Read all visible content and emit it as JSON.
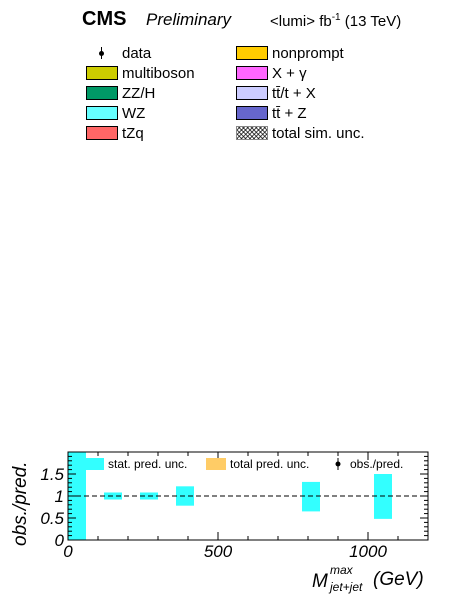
{
  "header": {
    "experiment": "CMS",
    "status": "Preliminary",
    "lumi_text": "<lumi> fb",
    "lumi_exp": "-1",
    "energy": "(13 TeV)"
  },
  "legend": {
    "items": [
      {
        "label": "data",
        "color": "#000000",
        "style": "marker"
      },
      {
        "label": "nonprompt",
        "color": "#ffcc00",
        "style": "fill"
      },
      {
        "label": "multiboson",
        "color": "#cccc00",
        "style": "fill"
      },
      {
        "label": "X +  γ",
        "color": "#ff66ff",
        "style": "fill"
      },
      {
        "label": "ZZ/H",
        "color": "#009966",
        "style": "fill"
      },
      {
        "label": "tt̄/t + X",
        "color": "#ccccff",
        "style": "fill"
      },
      {
        "label": "WZ",
        "color": "#66ffff",
        "style": "fill"
      },
      {
        "label": "tt̄ + Z",
        "color": "#6666cc",
        "style": "fill"
      },
      {
        "label": "tZq",
        "color": "#ff6666",
        "style": "fill"
      },
      {
        "label": "total sim. unc.",
        "color": "#999999",
        "style": "hatch"
      }
    ]
  },
  "chart_data": {
    "type": "ratio",
    "ylabel": "obs./pred.",
    "xlabel": "M",
    "xlabel_sup": "max",
    "xlabel_sub": "jet+jet",
    "xlabel_unit": "(GeV)",
    "xlim": [
      0,
      1200
    ],
    "ylim": [
      0,
      2
    ],
    "x_ticks": [
      "0",
      "500",
      "1000"
    ],
    "y_ticks": [
      "0",
      "0.5",
      "1",
      "1.5"
    ],
    "reference_line": 1,
    "legend": [
      {
        "label": "stat. pred. unc.",
        "color": "#33ffff"
      },
      {
        "label": "total pred. unc.",
        "color": "#ffcc66"
      },
      {
        "label": "obs./pred.",
        "color": "#000000"
      }
    ],
    "stat_unc_bins": [
      {
        "xlow": 0,
        "xhigh": 60,
        "ylow": 0,
        "yhigh": 2
      },
      {
        "xlow": 120,
        "xhigh": 180,
        "ylow": 0.92,
        "yhigh": 1.08
      },
      {
        "xlow": 240,
        "xhigh": 300,
        "ylow": 0.92,
        "yhigh": 1.08
      },
      {
        "xlow": 360,
        "xhigh": 420,
        "ylow": 0.78,
        "yhigh": 1.22
      },
      {
        "xlow": 780,
        "xhigh": 840,
        "ylow": 0.65,
        "yhigh": 1.32
      },
      {
        "xlow": 1020,
        "xhigh": 1080,
        "ylow": 0.48,
        "yhigh": 1.5
      }
    ]
  }
}
